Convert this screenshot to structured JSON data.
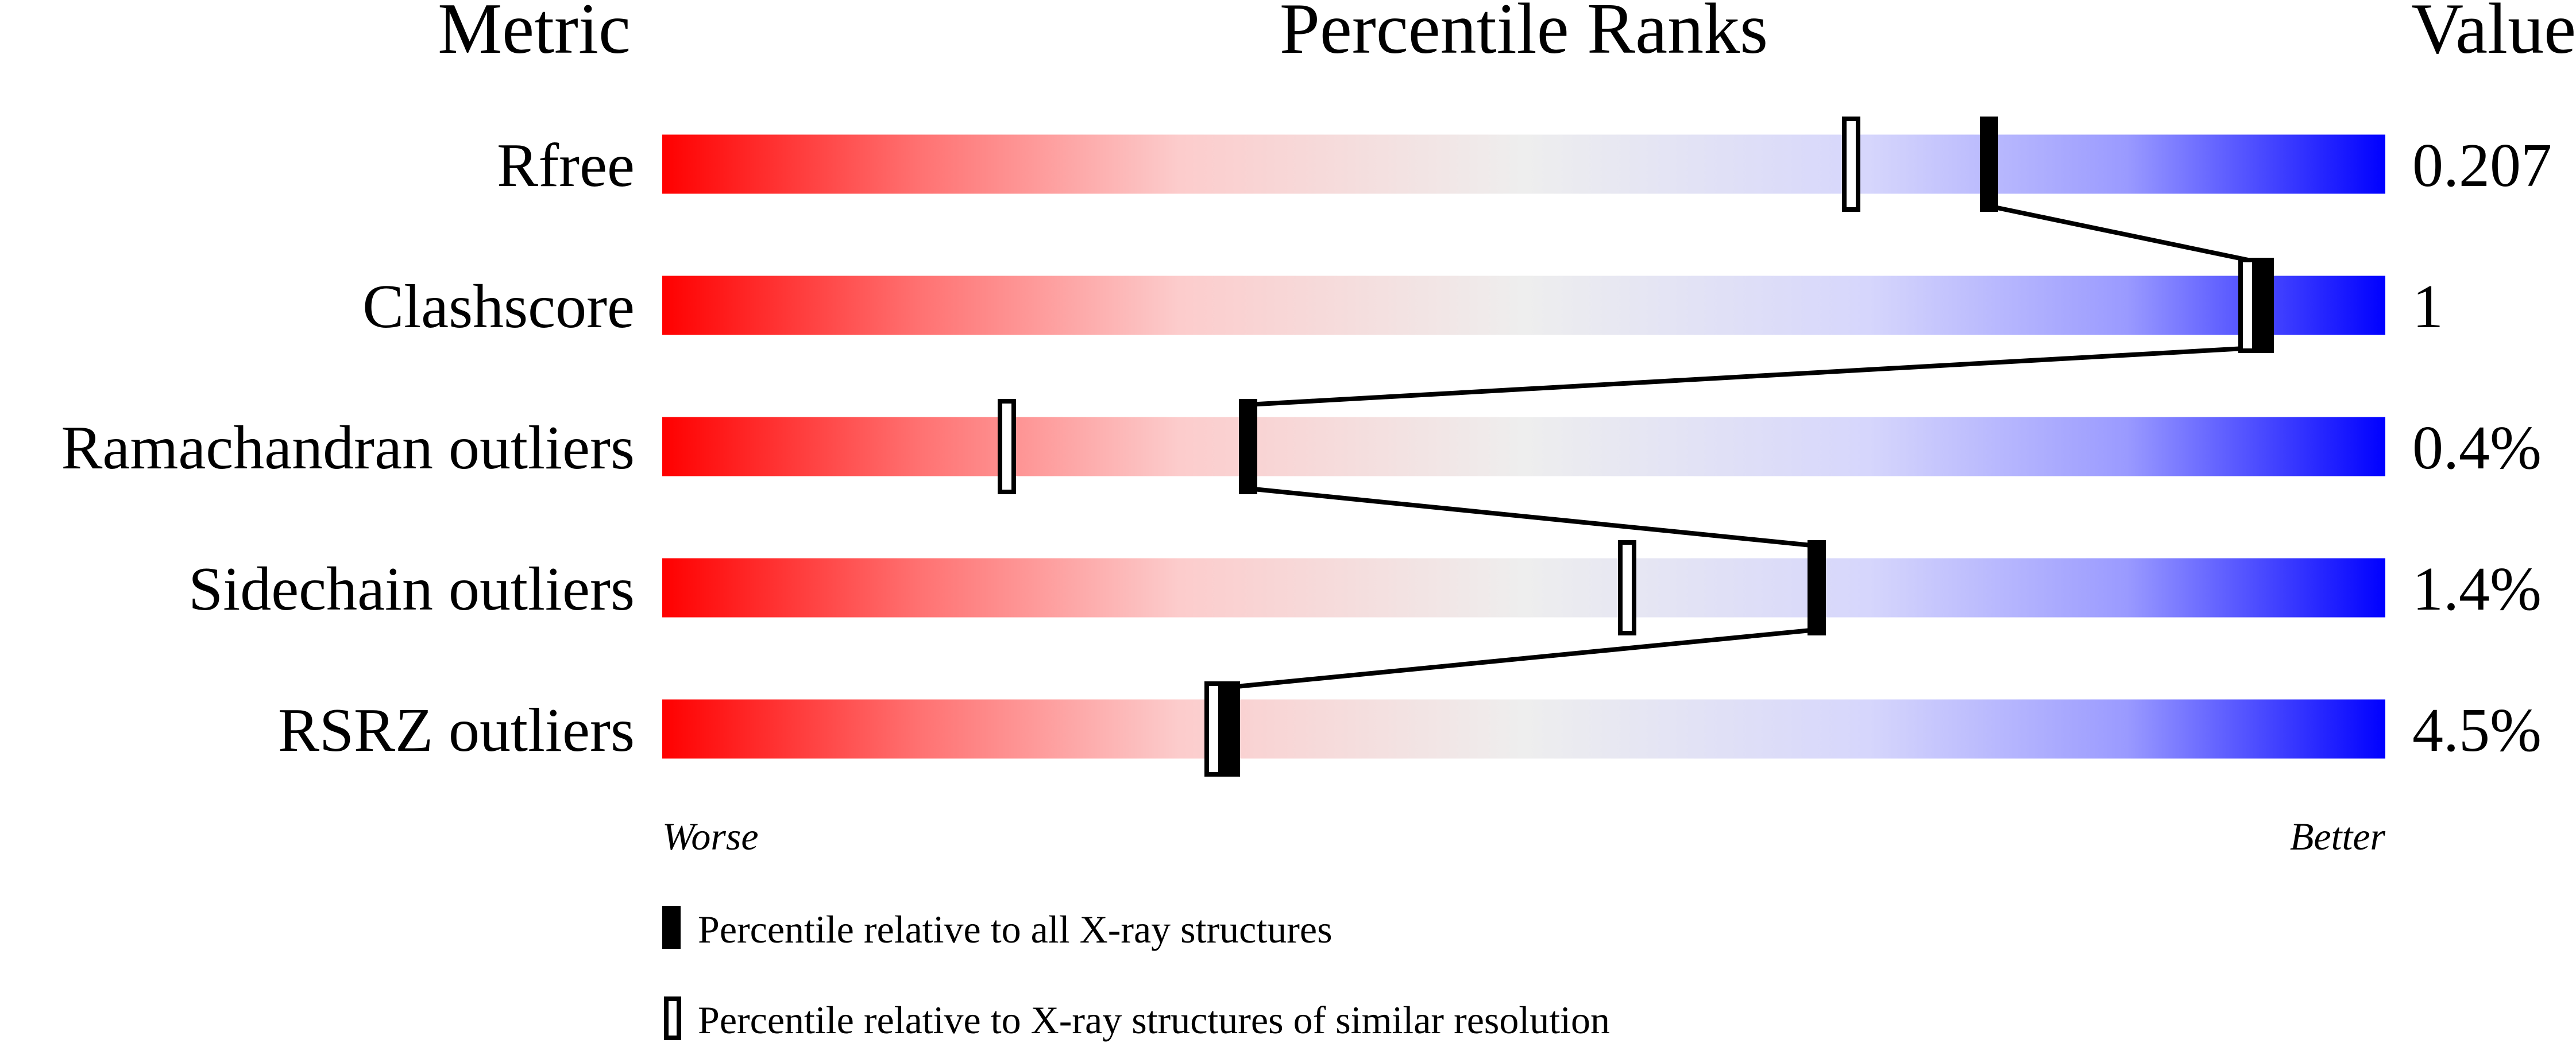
{
  "chart_data": {
    "type": "percentile-bar",
    "headers": {
      "metric": "Metric",
      "ranks": "Percentile Ranks",
      "value": "Value"
    },
    "xlim": [
      0,
      100
    ],
    "axis_labels": {
      "left": "Worse",
      "right": "Better"
    },
    "colors": {
      "worse": "#ff0000",
      "middle": "#eeeeee",
      "better": "#0000ff",
      "marker": "#000000"
    },
    "rows": [
      {
        "metric": "Rfree",
        "value": "0.207",
        "percentile_all": 77,
        "percentile_similar": 69
      },
      {
        "metric": "Clashscore",
        "value": "1",
        "percentile_all": 93,
        "percentile_similar": 92
      },
      {
        "metric": "Ramachandran outliers",
        "value": "0.4%",
        "percentile_all": 34,
        "percentile_similar": 20
      },
      {
        "metric": "Sidechain outliers",
        "value": "1.4%",
        "percentile_all": 67,
        "percentile_similar": 56
      },
      {
        "metric": "RSRZ outliers",
        "value": "4.5%",
        "percentile_all": 33,
        "percentile_similar": 32
      }
    ],
    "legend": [
      {
        "marker": "filled",
        "label": "Percentile relative to all X-ray structures"
      },
      {
        "marker": "open",
        "label": "Percentile relative to X-ray structures of similar resolution"
      }
    ]
  }
}
